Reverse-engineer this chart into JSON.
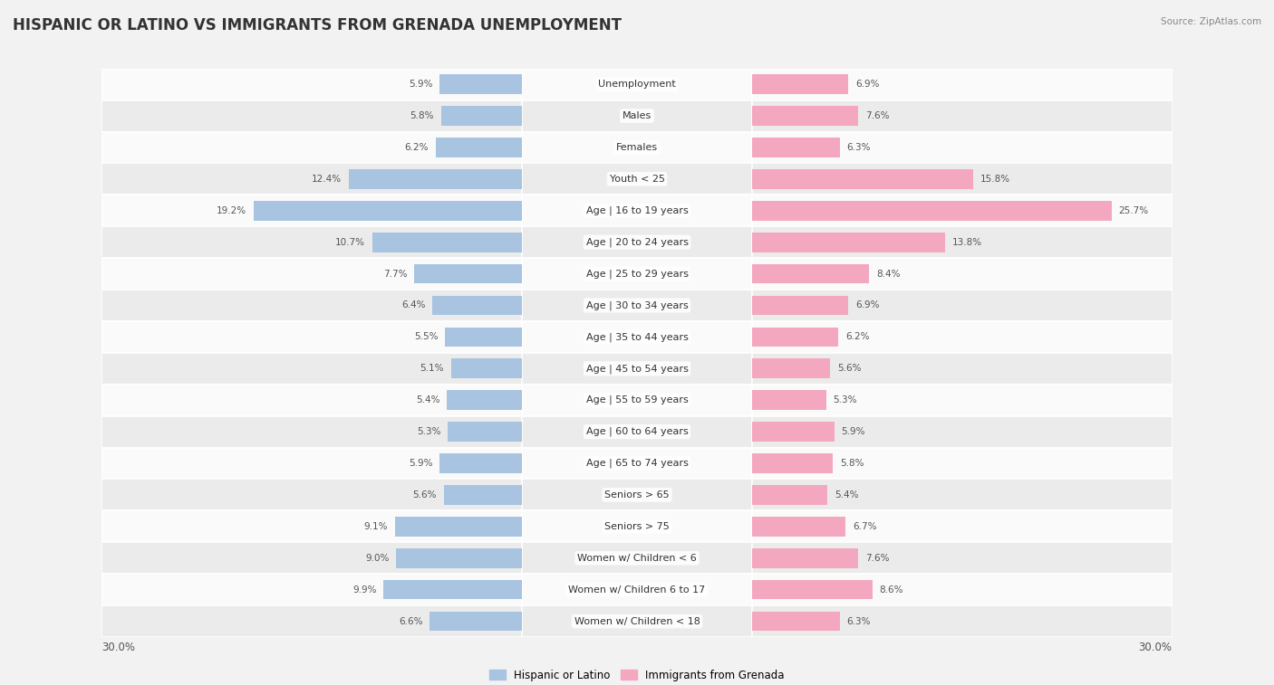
{
  "title": "HISPANIC OR LATINO VS IMMIGRANTS FROM GRENADA UNEMPLOYMENT",
  "source": "Source: ZipAtlas.com",
  "categories": [
    "Unemployment",
    "Males",
    "Females",
    "Youth < 25",
    "Age | 16 to 19 years",
    "Age | 20 to 24 years",
    "Age | 25 to 29 years",
    "Age | 30 to 34 years",
    "Age | 35 to 44 years",
    "Age | 45 to 54 years",
    "Age | 55 to 59 years",
    "Age | 60 to 64 years",
    "Age | 65 to 74 years",
    "Seniors > 65",
    "Seniors > 75",
    "Women w/ Children < 6",
    "Women w/ Children 6 to 17",
    "Women w/ Children < 18"
  ],
  "hispanic_values": [
    5.9,
    5.8,
    6.2,
    12.4,
    19.2,
    10.7,
    7.7,
    6.4,
    5.5,
    5.1,
    5.4,
    5.3,
    5.9,
    5.6,
    9.1,
    9.0,
    9.9,
    6.6
  ],
  "grenada_values": [
    6.9,
    7.6,
    6.3,
    15.8,
    25.7,
    13.8,
    8.4,
    6.9,
    6.2,
    5.6,
    5.3,
    5.9,
    5.8,
    5.4,
    6.7,
    7.6,
    8.6,
    6.3
  ],
  "hispanic_color": "#a8c4e0",
  "grenada_color": "#f4a8c0",
  "hispanic_label": "Hispanic or Latino",
  "grenada_label": "Immigrants from Grenada",
  "axis_max": 30.0,
  "bar_height": 0.62,
  "background_color": "#f2f2f2",
  "row_color_light": "#fafafa",
  "row_color_dark": "#ebebeb",
  "title_fontsize": 12,
  "label_fontsize": 8,
  "value_fontsize": 7.5,
  "legend_fontsize": 8.5,
  "separator_color": "#ffffff"
}
